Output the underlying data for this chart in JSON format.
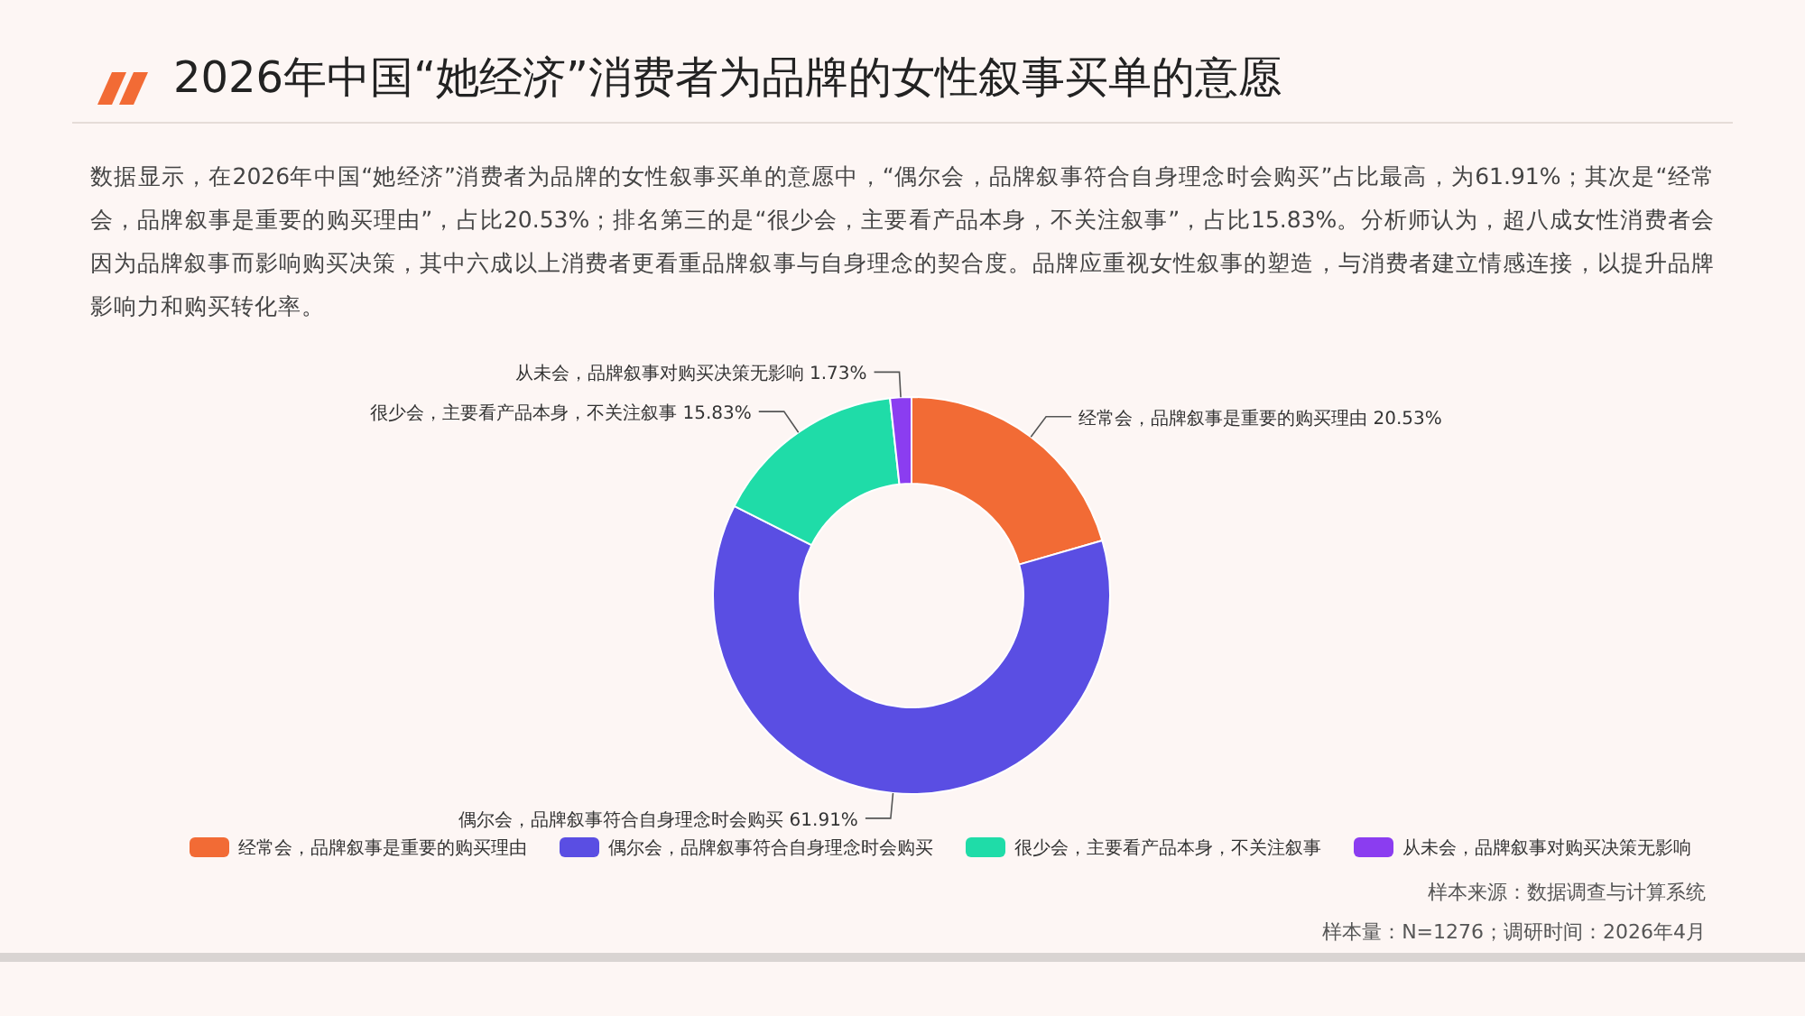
{
  "chart_data": {
    "type": "donut",
    "title": "2026年中国“她经济”消费者为品牌的女性叙事买单的意愿",
    "subtitle": "数据显示，在2026年中国“她经济”消费者为品牌的女性叙事买单的意愿中，“偶尔会，品牌叙事符合自身理念时会购买”占比最高，为61.91%；其次是“经常会，品牌叙事是重要的购买理由”，占比20.53%；排名第三的是“很少会，主要看产品本身，不关注叙事”，占比15.83%。分析师认为，超八成女性消费者会因为品牌叙事而影响购买决策，其中六成以上消费者更看重品牌叙事与自身理念的契合度。品牌应重视女性叙事的塑造，与消费者建立情感连接，以提升品牌影响力和购买转化率。",
    "categories": [
      "经常会，品牌叙事是重要的购买理由",
      "偶尔会，品牌叙事符合自身理念时会购买",
      "很少会，主要看产品本身，不关注叙事",
      "从未会，品牌叙事对购买决策无影响"
    ],
    "values": [
      20.53,
      61.91,
      15.83,
      1.73
    ],
    "colors": [
      "#f26b35",
      "#5a4ee3",
      "#1fdca8",
      "#8b3df0"
    ],
    "value_labels": [
      "20.53%",
      "61.91%",
      "15.83%",
      "1.73%"
    ],
    "legend": "bottom",
    "annotations": [
      "样本来源：数据调查与计算系统",
      "样本量：N=1276；调研时间：2026年4月"
    ]
  }
}
